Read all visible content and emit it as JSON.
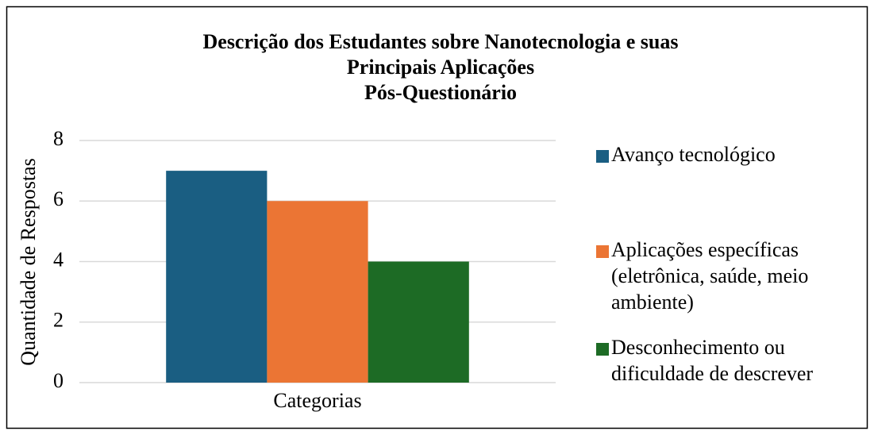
{
  "chart_data": {
    "type": "bar",
    "title": [
      "Descrição dos Estudantes sobre Nanotecnologia e suas",
      "Principais Aplicações",
      "Pós-Questionário"
    ],
    "categories": [
      "Categorias"
    ],
    "y_label": "Quantidade de Respostas",
    "series": [
      {
        "name": "Avanço tecnológico",
        "color": "#1a5e82",
        "values": [
          7
        ]
      },
      {
        "name": "Aplicações específicas (eletrônica, saúde, meio ambiente)",
        "color": "#eb7534",
        "values": [
          6
        ]
      },
      {
        "name": "Desconhecimento ou dificuldade de descrever",
        "color": "#1d6b25",
        "values": [
          4
        ]
      }
    ],
    "ylim": [
      0,
      8
    ],
    "yticks": [
      0,
      2,
      4,
      6,
      8
    ],
    "grid": true,
    "legend": "right"
  }
}
